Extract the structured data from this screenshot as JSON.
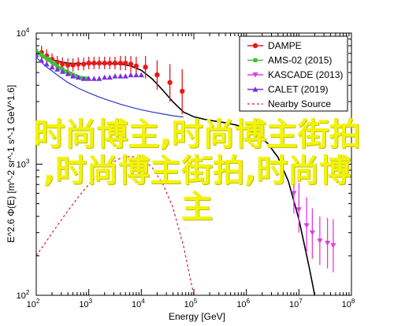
{
  "chart_data": {
    "type": "line",
    "xlabel": "Energy [GeV]",
    "ylabel": "E^2.6 Φ(E) [m^-2 sr^-1 s^-1 GeV^1.6]",
    "xscale": "log",
    "yscale": "log",
    "xlim": [
      100,
      100000000
    ],
    "ylim": [
      100,
      10000
    ],
    "x_ticks": [
      {
        "value": 100,
        "base": "10",
        "exp": "2"
      },
      {
        "value": 1000,
        "base": "10",
        "exp": "3"
      },
      {
        "value": 10000,
        "base": "10",
        "exp": "4"
      },
      {
        "value": 100000,
        "base": "10",
        "exp": "5"
      },
      {
        "value": 1000000,
        "base": "10",
        "exp": "6"
      },
      {
        "value": 10000000,
        "base": "10",
        "exp": "7"
      },
      {
        "value": 100000000,
        "base": "10",
        "exp": "8"
      }
    ],
    "y_ticks": [
      {
        "value": 100,
        "base": "10",
        "exp": "2"
      },
      {
        "value": 1000,
        "base": "10",
        "exp": "3"
      },
      {
        "value": 10000,
        "base": "10",
        "exp": "4"
      }
    ],
    "legend_position": "top-right",
    "series": [
      {
        "name": "DAMPE",
        "color": "#e8191c",
        "marker": "circle",
        "points": [
          {
            "x": 126,
            "y": 7100,
            "lo": 6300,
            "hi": 8000
          },
          {
            "x": 158,
            "y": 6700,
            "lo": 6000,
            "hi": 7500
          },
          {
            "x": 200,
            "y": 6300,
            "lo": 5700,
            "hi": 7000
          },
          {
            "x": 251,
            "y": 6000,
            "lo": 5400,
            "hi": 6700
          },
          {
            "x": 316,
            "y": 5800,
            "lo": 5200,
            "hi": 6500
          },
          {
            "x": 400,
            "y": 5700,
            "lo": 5100,
            "hi": 6400
          },
          {
            "x": 500,
            "y": 5700,
            "lo": 5100,
            "hi": 6400
          },
          {
            "x": 631,
            "y": 5800,
            "lo": 5200,
            "hi": 6500
          },
          {
            "x": 800,
            "y": 5800,
            "lo": 5200,
            "hi": 6500
          },
          {
            "x": 1000,
            "y": 5900,
            "lo": 5300,
            "hi": 6600
          },
          {
            "x": 1260,
            "y": 5900,
            "lo": 5300,
            "hi": 6600
          },
          {
            "x": 1580,
            "y": 5900,
            "lo": 5300,
            "hi": 6600
          },
          {
            "x": 2000,
            "y": 5900,
            "lo": 5300,
            "hi": 6600
          },
          {
            "x": 2510,
            "y": 5900,
            "lo": 5300,
            "hi": 6600
          },
          {
            "x": 3160,
            "y": 5900,
            "lo": 5300,
            "hi": 6600
          },
          {
            "x": 4000,
            "y": 5900,
            "lo": 5200,
            "hi": 6700
          },
          {
            "x": 5000,
            "y": 5900,
            "lo": 5200,
            "hi": 6700
          },
          {
            "x": 6310,
            "y": 5800,
            "lo": 5000,
            "hi": 6700
          },
          {
            "x": 8000,
            "y": 5600,
            "lo": 4700,
            "hi": 6600
          },
          {
            "x": 12000,
            "y": 5500,
            "lo": 4500,
            "hi": 6700
          },
          {
            "x": 20000,
            "y": 4800,
            "lo": 3700,
            "hi": 6200
          },
          {
            "x": 35000,
            "y": 4200,
            "lo": 3000,
            "hi": 5800
          },
          {
            "x": 60000,
            "y": 3600,
            "lo": 2400,
            "hi": 5300
          }
        ]
      },
      {
        "name": "AMS-02 (2015)",
        "color": "#3fbf3a",
        "marker": "square",
        "points": [
          {
            "x": 100,
            "y": 7300
          },
          {
            "x": 112,
            "y": 7000
          },
          {
            "x": 126,
            "y": 6800
          },
          {
            "x": 141,
            "y": 6600
          },
          {
            "x": 158,
            "y": 6400
          },
          {
            "x": 178,
            "y": 6200
          },
          {
            "x": 200,
            "y": 6000
          },
          {
            "x": 224,
            "y": 5800
          },
          {
            "x": 251,
            "y": 5600
          },
          {
            "x": 282,
            "y": 5400
          },
          {
            "x": 316,
            "y": 5300
          },
          {
            "x": 355,
            "y": 5100
          },
          {
            "x": 400,
            "y": 5000
          },
          {
            "x": 450,
            "y": 4900
          },
          {
            "x": 500,
            "y": 4800
          },
          {
            "x": 562,
            "y": 4700
          },
          {
            "x": 631,
            "y": 4600
          },
          {
            "x": 708,
            "y": 4550
          },
          {
            "x": 800,
            "y": 4500
          },
          {
            "x": 900,
            "y": 4500
          }
        ]
      },
      {
        "name": "KASCADE (2013)",
        "color": "#e63ae0",
        "marker": "triangle-down",
        "points": [
          {
            "x": 8000000,
            "y": 600,
            "lo": 420,
            "hi": 820
          },
          {
            "x": 10000000,
            "y": 450,
            "lo": 300,
            "hi": 720
          },
          {
            "x": 14000000,
            "y": 340,
            "lo": 210,
            "hi": 560
          },
          {
            "x": 18000000,
            "y": 300,
            "lo": 190,
            "hi": 460
          },
          {
            "x": 25000000,
            "y": 260,
            "lo": 170,
            "hi": 400
          },
          {
            "x": 35000000,
            "y": 250,
            "lo": 160,
            "hi": 390
          },
          {
            "x": 45000000,
            "y": 240,
            "lo": 150,
            "hi": 380
          }
        ]
      },
      {
        "name": "CALET (2019)",
        "color": "#7b2fe0",
        "marker": "triangle-up",
        "points": [
          {
            "x": 100,
            "y": 6800
          },
          {
            "x": 126,
            "y": 6200
          },
          {
            "x": 158,
            "y": 5800
          },
          {
            "x": 200,
            "y": 5500
          },
          {
            "x": 251,
            "y": 5300
          },
          {
            "x": 316,
            "y": 5100
          },
          {
            "x": 400,
            "y": 4900
          },
          {
            "x": 500,
            "y": 4700
          },
          {
            "x": 631,
            "y": 4600
          },
          {
            "x": 800,
            "y": 4500
          },
          {
            "x": 1000,
            "y": 4500
          },
          {
            "x": 1260,
            "y": 4500
          },
          {
            "x": 1580,
            "y": 4500
          },
          {
            "x": 2000,
            "y": 4600
          },
          {
            "x": 2510,
            "y": 4600
          },
          {
            "x": 3160,
            "y": 4700
          },
          {
            "x": 4000,
            "y": 4700
          },
          {
            "x": 5000,
            "y": 4700
          },
          {
            "x": 6310,
            "y": 4800
          },
          {
            "x": 8000,
            "y": 4800
          },
          {
            "x": 10000,
            "y": 4800
          }
        ]
      },
      {
        "name": "Nearby Source",
        "color": "#d42020",
        "style": "dashed",
        "points": [
          {
            "x": 100,
            "y": 200
          },
          {
            "x": 158,
            "y": 260
          },
          {
            "x": 251,
            "y": 340
          },
          {
            "x": 398,
            "y": 440
          },
          {
            "x": 631,
            "y": 560
          },
          {
            "x": 1000,
            "y": 700
          },
          {
            "x": 1585,
            "y": 860
          },
          {
            "x": 2512,
            "y": 1000
          },
          {
            "x": 3981,
            "y": 1110
          },
          {
            "x": 6310,
            "y": 1150
          },
          {
            "x": 10000,
            "y": 1100
          },
          {
            "x": 15850,
            "y": 950
          },
          {
            "x": 25120,
            "y": 720
          },
          {
            "x": 39810,
            "y": 470
          },
          {
            "x": 63100,
            "y": 240
          },
          {
            "x": 100000,
            "y": 100
          }
        ]
      },
      {
        "name": "",
        "color": "#2a36c9",
        "style": "solid",
        "points": [
          {
            "x": 100,
            "y": 6500
          },
          {
            "x": 158,
            "y": 5500
          },
          {
            "x": 251,
            "y": 4800
          },
          {
            "x": 398,
            "y": 4200
          },
          {
            "x": 631,
            "y": 3800
          },
          {
            "x": 1000,
            "y": 3500
          },
          {
            "x": 1585,
            "y": 3250
          },
          {
            "x": 2512,
            "y": 3050
          },
          {
            "x": 3981,
            "y": 2870
          },
          {
            "x": 6310,
            "y": 2720
          },
          {
            "x": 10000,
            "y": 2600
          },
          {
            "x": 15850,
            "y": 2500
          },
          {
            "x": 25120,
            "y": 2420
          },
          {
            "x": 39810,
            "y": 2340
          },
          {
            "x": 63100,
            "y": 2290
          }
        ]
      },
      {
        "name": "",
        "color": "#000000",
        "style": "solid",
        "points": [
          {
            "x": 100,
            "y": 7000
          },
          {
            "x": 158,
            "y": 6500
          },
          {
            "x": 251,
            "y": 6100
          },
          {
            "x": 398,
            "y": 5900
          },
          {
            "x": 631,
            "y": 5850
          },
          {
            "x": 1000,
            "y": 5850
          },
          {
            "x": 1585,
            "y": 5850
          },
          {
            "x": 2512,
            "y": 5850
          },
          {
            "x": 3981,
            "y": 5800
          },
          {
            "x": 6310,
            "y": 5600
          },
          {
            "x": 10000,
            "y": 5200
          },
          {
            "x": 15850,
            "y": 4500
          },
          {
            "x": 25120,
            "y": 3700
          },
          {
            "x": 39810,
            "y": 3000
          },
          {
            "x": 63100,
            "y": 2500
          },
          {
            "x": 100000,
            "y": 2300
          },
          {
            "x": 158500,
            "y": 2200
          },
          {
            "x": 251200,
            "y": 2130
          },
          {
            "x": 398100,
            "y": 2070
          },
          {
            "x": 631000,
            "y": 1990
          },
          {
            "x": 1000000,
            "y": 1870
          },
          {
            "x": 1585000,
            "y": 1680
          },
          {
            "x": 2512000,
            "y": 1450
          },
          {
            "x": 3981000,
            "y": 1130
          },
          {
            "x": 6310000,
            "y": 740
          },
          {
            "x": 10000000,
            "y": 380
          },
          {
            "x": 15850000,
            "y": 160
          },
          {
            "x": 20000000,
            "y": 100
          }
        ]
      }
    ]
  },
  "overlay_text": {
    "line1": "时尚博主,时尚博主街拍",
    "line2": ",时尚博主街拍,时尚博",
    "line3": "主"
  }
}
